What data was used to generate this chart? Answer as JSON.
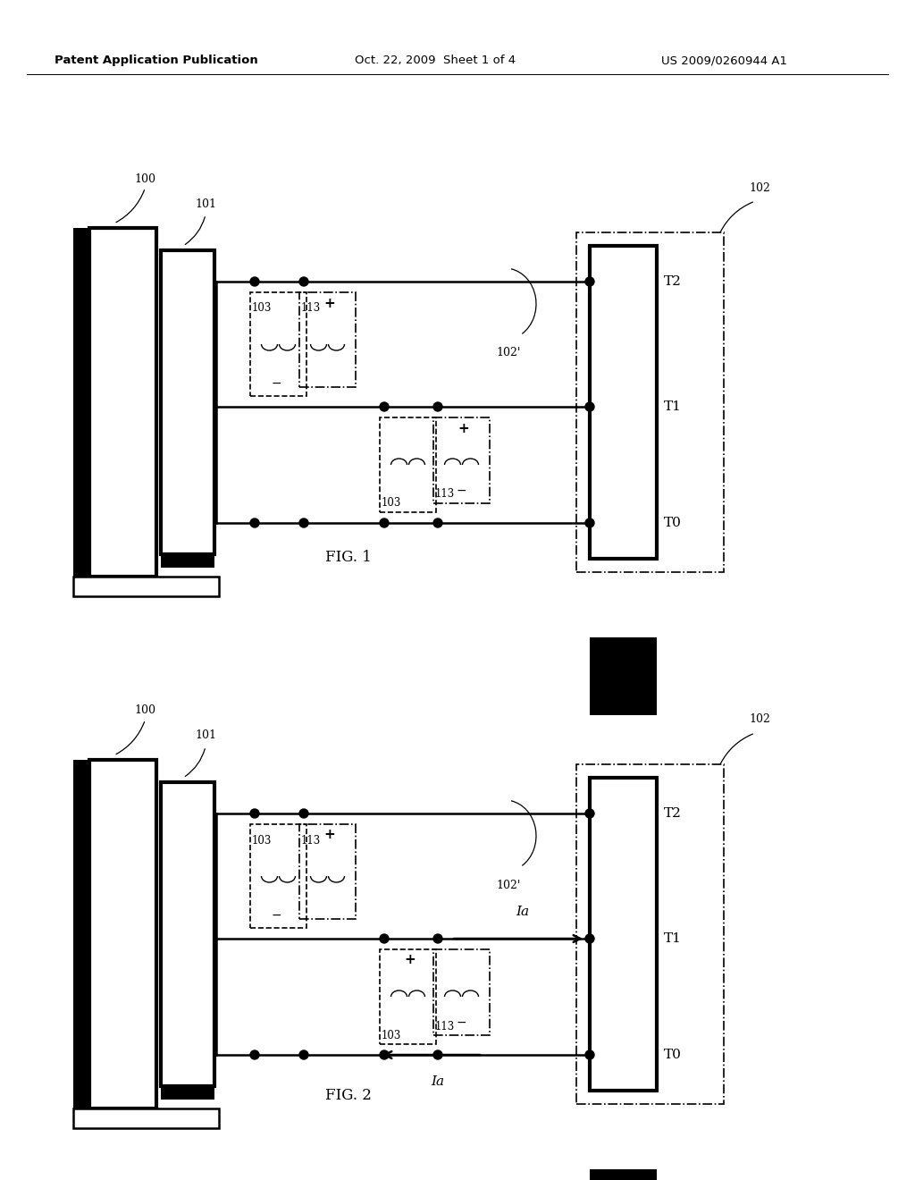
{
  "bg_color": "#ffffff",
  "header_left": "Patent Application Publication",
  "header_center": "Oct. 22, 2009  Sheet 1 of 4",
  "header_right": "US 2009/0260944 A1",
  "fig1_label": "FIG. 1",
  "fig2_label": "FIG. 2",
  "T2": "T2",
  "T1": "T1",
  "T0": "T0",
  "label_100": "100",
  "label_101": "101",
  "label_102": "102",
  "label_102p": "102'",
  "label_103": "103",
  "label_113": "113",
  "label_Ia": "Ia",
  "plus": "+",
  "minus": "−"
}
